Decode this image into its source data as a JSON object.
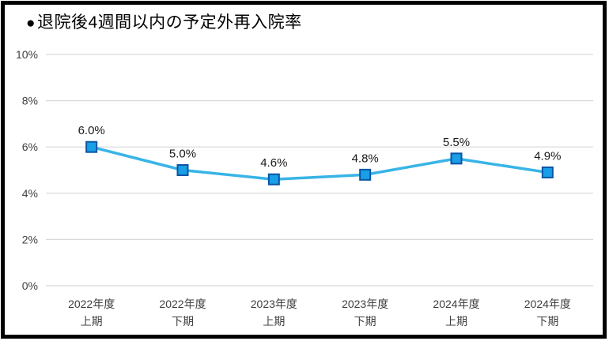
{
  "page": {
    "background_color": "#ffffff",
    "frame_border_color": "#000000"
  },
  "title": {
    "bullet": "●",
    "text": "退院後4週間以内の予定外再入院率"
  },
  "chart_data": {
    "type": "line",
    "title": "退院後4週間以内の予定外再入院率",
    "categories": [
      {
        "line1": "2022年度",
        "line2": "上期"
      },
      {
        "line1": "2022年度",
        "line2": "下期"
      },
      {
        "line1": "2023年度",
        "line2": "上期"
      },
      {
        "line1": "2023年度",
        "line2": "下期"
      },
      {
        "line1": "2024年度",
        "line2": "上期"
      },
      {
        "line1": "2024年度",
        "line2": "下期"
      }
    ],
    "values": [
      6.0,
      5.0,
      4.6,
      4.8,
      5.5,
      4.9
    ],
    "data_labels": [
      "6.0%",
      "5.0%",
      "4.6%",
      "4.8%",
      "5.5%",
      "4.9%"
    ],
    "xlabel": "",
    "ylabel": "",
    "ylim": [
      0,
      10
    ],
    "y_ticks": [
      0,
      2,
      4,
      6,
      8,
      10
    ],
    "y_tick_labels": [
      "0%",
      "2%",
      "4%",
      "6%",
      "8%",
      "10%"
    ],
    "grid": true,
    "legend": false,
    "marker_shape": "square",
    "colors": {
      "line": "#38B4E6",
      "marker_fill": "#189FE5",
      "marker_border": "#0B55A5",
      "grid": "#D9D9D9",
      "axis_text": "#404040",
      "label_text": "#1a1a1a"
    }
  }
}
